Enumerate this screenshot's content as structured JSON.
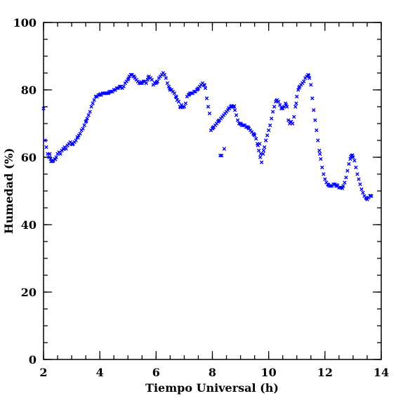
{
  "chart_data": {
    "type": "scatter",
    "title": "",
    "xlabel": "Tiempo Universal (h)",
    "ylabel": "Humedad (%)",
    "xlim": [
      2,
      14
    ],
    "ylim": [
      0,
      100
    ],
    "xticks": [
      2,
      4,
      6,
      8,
      10,
      12,
      14
    ],
    "yticks": [
      0,
      20,
      40,
      60,
      80,
      100
    ],
    "xtick_labels": [
      "2",
      "4",
      "6",
      "8",
      "10",
      "12",
      "14"
    ],
    "ytick_labels": [
      "0",
      "20",
      "40",
      "60",
      "80",
      "100"
    ],
    "x_minor_step": 0.5,
    "y_minor_step": 5,
    "grid": false,
    "marker": "x",
    "marker_color": "#0000ff",
    "series": [
      {
        "points": [
          [
            2.0,
            74.5
          ],
          [
            2.05,
            65.0
          ],
          [
            2.1,
            63.0
          ],
          [
            2.15,
            61.0
          ],
          [
            2.2,
            60.0
          ],
          [
            2.25,
            59.5
          ],
          [
            2.3,
            59.0
          ],
          [
            2.35,
            59.0
          ],
          [
            2.4,
            59.5
          ],
          [
            2.45,
            60.0
          ],
          [
            2.5,
            61.0
          ],
          [
            2.55,
            61.5
          ],
          [
            2.6,
            61.0
          ],
          [
            2.65,
            62.0
          ],
          [
            2.7,
            62.5
          ],
          [
            2.75,
            63.0
          ],
          [
            2.8,
            62.5
          ],
          [
            2.85,
            63.5
          ],
          [
            2.9,
            64.0
          ],
          [
            2.95,
            64.5
          ],
          [
            3.0,
            64.0
          ],
          [
            3.05,
            64.0
          ],
          [
            3.1,
            64.5
          ],
          [
            3.15,
            65.0
          ],
          [
            3.2,
            66.0
          ],
          [
            3.25,
            66.5
          ],
          [
            3.3,
            67.0
          ],
          [
            3.35,
            68.0
          ],
          [
            3.4,
            68.5
          ],
          [
            3.45,
            69.5
          ],
          [
            3.5,
            70.5
          ],
          [
            3.55,
            71.5
          ],
          [
            3.6,
            72.5
          ],
          [
            3.65,
            73.5
          ],
          [
            3.7,
            75.0
          ],
          [
            3.75,
            76.0
          ],
          [
            3.8,
            77.0
          ],
          [
            3.85,
            78.0
          ],
          [
            3.9,
            78.0
          ],
          [
            3.95,
            78.5
          ],
          [
            4.0,
            78.5
          ],
          [
            4.05,
            78.5
          ],
          [
            4.1,
            79.0
          ],
          [
            4.15,
            79.0
          ],
          [
            4.2,
            79.0
          ],
          [
            4.25,
            79.0
          ],
          [
            4.3,
            79.0
          ],
          [
            4.35,
            79.5
          ],
          [
            4.4,
            79.5
          ],
          [
            4.45,
            79.5
          ],
          [
            4.5,
            80.0
          ],
          [
            4.55,
            80.0
          ],
          [
            4.6,
            80.5
          ],
          [
            4.65,
            80.5
          ],
          [
            4.7,
            81.0
          ],
          [
            4.75,
            81.0
          ],
          [
            4.8,
            80.5
          ],
          [
            4.85,
            81.0
          ],
          [
            4.9,
            82.0
          ],
          [
            4.95,
            82.5
          ],
          [
            5.0,
            83.0
          ],
          [
            5.05,
            84.0
          ],
          [
            5.1,
            84.5
          ],
          [
            5.15,
            84.5
          ],
          [
            5.2,
            84.0
          ],
          [
            5.25,
            83.5
          ],
          [
            5.3,
            83.0
          ],
          [
            5.35,
            82.5
          ],
          [
            5.4,
            82.0
          ],
          [
            5.45,
            82.0
          ],
          [
            5.5,
            82.0
          ],
          [
            5.55,
            82.5
          ],
          [
            5.6,
            82.5
          ],
          [
            5.65,
            82.0
          ],
          [
            5.7,
            83.0
          ],
          [
            5.75,
            84.0
          ],
          [
            5.8,
            83.5
          ],
          [
            5.85,
            83.0
          ],
          [
            5.9,
            81.5
          ],
          [
            5.95,
            82.0
          ],
          [
            6.0,
            82.0
          ],
          [
            6.05,
            82.5
          ],
          [
            6.1,
            83.5
          ],
          [
            6.15,
            84.0
          ],
          [
            6.2,
            84.5
          ],
          [
            6.25,
            85.0
          ],
          [
            6.3,
            84.5
          ],
          [
            6.35,
            83.5
          ],
          [
            6.4,
            82.0
          ],
          [
            6.45,
            81.0
          ],
          [
            6.5,
            80.0
          ],
          [
            6.55,
            80.0
          ],
          [
            6.6,
            79.5
          ],
          [
            6.65,
            79.0
          ],
          [
            6.7,
            78.0
          ],
          [
            6.75,
            77.0
          ],
          [
            6.8,
            76.5
          ],
          [
            6.85,
            75.0
          ],
          [
            6.9,
            75.5
          ],
          [
            6.95,
            74.8
          ],
          [
            7.0,
            75.0
          ],
          [
            7.05,
            76.0
          ],
          [
            7.1,
            78.0
          ],
          [
            7.15,
            78.5
          ],
          [
            7.2,
            79.0
          ],
          [
            7.25,
            79.0
          ],
          [
            7.3,
            79.0
          ],
          [
            7.35,
            79.5
          ],
          [
            7.4,
            79.5
          ],
          [
            7.45,
            80.0
          ],
          [
            7.5,
            80.5
          ],
          [
            7.55,
            81.0
          ],
          [
            7.6,
            81.5
          ],
          [
            7.65,
            82.0
          ],
          [
            7.7,
            81.5
          ],
          [
            7.75,
            80.5
          ],
          [
            7.8,
            77.5
          ],
          [
            7.85,
            75.0
          ],
          [
            7.9,
            73.0
          ],
          [
            7.95,
            68.0
          ],
          [
            8.0,
            68.5
          ],
          [
            8.05,
            69.0
          ],
          [
            8.1,
            69.5
          ],
          [
            8.15,
            70.0
          ],
          [
            8.2,
            70.5
          ],
          [
            8.25,
            71.0
          ],
          [
            8.3,
            71.5
          ],
          [
            8.35,
            72.0
          ],
          [
            8.4,
            72.5
          ],
          [
            8.45,
            73.0
          ],
          [
            8.5,
            73.5
          ],
          [
            8.55,
            74.0
          ],
          [
            8.6,
            74.5
          ],
          [
            8.65,
            75.0
          ],
          [
            8.7,
            75.0
          ],
          [
            8.75,
            75.0
          ],
          [
            8.8,
            74.0
          ],
          [
            8.85,
            72.5
          ],
          [
            8.9,
            71.0
          ],
          [
            8.95,
            70.0
          ],
          [
            9.0,
            70.0
          ],
          [
            9.05,
            69.5
          ],
          [
            9.1,
            69.5
          ],
          [
            9.15,
            69.5
          ],
          [
            9.2,
            69.0
          ],
          [
            9.25,
            69.0
          ],
          [
            9.3,
            68.5
          ],
          [
            9.35,
            68.0
          ],
          [
            9.4,
            67.5
          ],
          [
            9.45,
            67.0
          ],
          [
            9.5,
            66.5
          ],
          [
            9.55,
            65.5
          ],
          [
            9.6,
            64.0
          ],
          [
            9.65,
            62.0
          ],
          [
            9.7,
            60.0
          ],
          [
            9.75,
            58.5
          ],
          [
            9.8,
            61.0
          ],
          [
            9.85,
            63.0
          ],
          [
            9.9,
            65.0
          ],
          [
            9.95,
            66.5
          ],
          [
            10.0,
            68.0
          ],
          [
            10.05,
            69.5
          ],
          [
            10.1,
            71.5
          ],
          [
            10.15,
            73.5
          ],
          [
            10.2,
            75.0
          ],
          [
            10.25,
            76.5
          ],
          [
            10.3,
            77.0
          ],
          [
            10.35,
            76.5
          ],
          [
            10.4,
            75.5
          ],
          [
            10.45,
            74.5
          ],
          [
            10.5,
            74.5
          ],
          [
            10.55,
            75.0
          ],
          [
            10.6,
            76.0
          ],
          [
            10.65,
            75.0
          ],
          [
            10.7,
            71.0
          ],
          [
            10.75,
            70.0
          ],
          [
            10.8,
            70.5
          ],
          [
            10.85,
            70.0
          ],
          [
            10.9,
            72.0
          ],
          [
            10.95,
            75.0
          ],
          [
            11.0,
            78.0
          ],
          [
            11.05,
            80.0
          ],
          [
            11.1,
            81.0
          ],
          [
            11.15,
            81.5
          ],
          [
            11.2,
            82.0
          ],
          [
            11.25,
            82.5
          ],
          [
            11.3,
            83.5
          ],
          [
            11.35,
            84.0
          ],
          [
            11.4,
            84.5
          ],
          [
            11.45,
            83.5
          ],
          [
            11.5,
            81.5
          ],
          [
            11.55,
            77.5
          ],
          [
            11.6,
            74.0
          ],
          [
            11.65,
            71.0
          ],
          [
            11.7,
            68.0
          ],
          [
            11.75,
            65.0
          ],
          [
            11.8,
            62.0
          ],
          [
            11.85,
            59.5
          ],
          [
            11.9,
            57.0
          ],
          [
            11.95,
            55.0
          ],
          [
            12.0,
            53.5
          ],
          [
            12.05,
            52.5
          ],
          [
            12.1,
            52.0
          ],
          [
            12.15,
            51.5
          ],
          [
            12.2,
            51.5
          ],
          [
            12.25,
            51.5
          ],
          [
            12.3,
            52.0
          ],
          [
            12.35,
            52.0
          ],
          [
            12.4,
            51.5
          ],
          [
            12.45,
            51.5
          ],
          [
            12.5,
            51.0
          ],
          [
            12.55,
            51.0
          ],
          [
            12.6,
            51.0
          ],
          [
            12.65,
            51.5
          ],
          [
            12.7,
            52.5
          ],
          [
            12.75,
            54.0
          ],
          [
            12.8,
            56.0
          ],
          [
            12.85,
            58.0
          ],
          [
            12.9,
            59.5
          ],
          [
            12.95,
            60.5
          ],
          [
            13.0,
            60.0
          ],
          [
            13.05,
            59.0
          ],
          [
            13.1,
            57.0
          ],
          [
            13.15,
            55.0
          ],
          [
            13.2,
            53.5
          ],
          [
            13.25,
            52.0
          ],
          [
            13.3,
            50.5
          ],
          [
            13.35,
            49.5
          ],
          [
            13.4,
            48.5
          ],
          [
            13.45,
            48.0
          ],
          [
            13.5,
            47.5
          ],
          [
            13.55,
            48.0
          ],
          [
            13.6,
            48.5
          ],
          [
            13.65,
            48.5
          ],
          [
            2.22,
            61.0
          ],
          [
            2.27,
            58.8
          ],
          [
            2.32,
            58.8
          ],
          [
            2.42,
            59.4
          ],
          [
            2.72,
            62.4
          ],
          [
            3.02,
            63.8
          ],
          [
            3.22,
            65.8
          ],
          [
            3.52,
            70.8
          ],
          [
            4.02,
            78.8
          ],
          [
            4.32,
            79.2
          ],
          [
            4.72,
            80.8
          ],
          [
            5.02,
            83.4
          ],
          [
            5.22,
            84.0
          ],
          [
            5.48,
            82.3
          ],
          [
            5.72,
            83.7
          ],
          [
            6.02,
            82.3
          ],
          [
            6.48,
            80.4
          ],
          [
            6.72,
            77.8
          ],
          [
            6.88,
            74.8
          ],
          [
            7.18,
            78.6
          ],
          [
            7.48,
            80.2
          ],
          [
            7.72,
            81.4
          ],
          [
            8.02,
            68.8
          ],
          [
            8.22,
            70.8
          ],
          [
            8.28,
            60.5
          ],
          [
            8.33,
            60.5
          ],
          [
            8.42,
            62.5
          ],
          [
            8.58,
            74.6
          ],
          [
            8.68,
            75.3
          ],
          [
            8.78,
            75.2
          ],
          [
            9.02,
            69.8
          ],
          [
            9.28,
            68.8
          ],
          [
            9.48,
            66.8
          ],
          [
            9.62,
            63.5
          ],
          [
            9.68,
            64.0
          ],
          [
            9.72,
            61.0
          ],
          [
            9.82,
            62.0
          ],
          [
            10.28,
            76.8
          ],
          [
            10.48,
            74.8
          ],
          [
            10.62,
            75.5
          ],
          [
            10.78,
            70.5
          ],
          [
            10.98,
            76.0
          ],
          [
            11.08,
            80.6
          ],
          [
            11.42,
            84.2
          ],
          [
            11.82,
            61.0
          ],
          [
            12.12,
            51.8
          ],
          [
            12.42,
            51.8
          ],
          [
            12.62,
            50.8
          ],
          [
            12.92,
            60.2
          ],
          [
            12.98,
            60.6
          ],
          [
            13.48,
            47.8
          ],
          [
            13.62,
            48.6
          ]
        ]
      }
    ]
  }
}
